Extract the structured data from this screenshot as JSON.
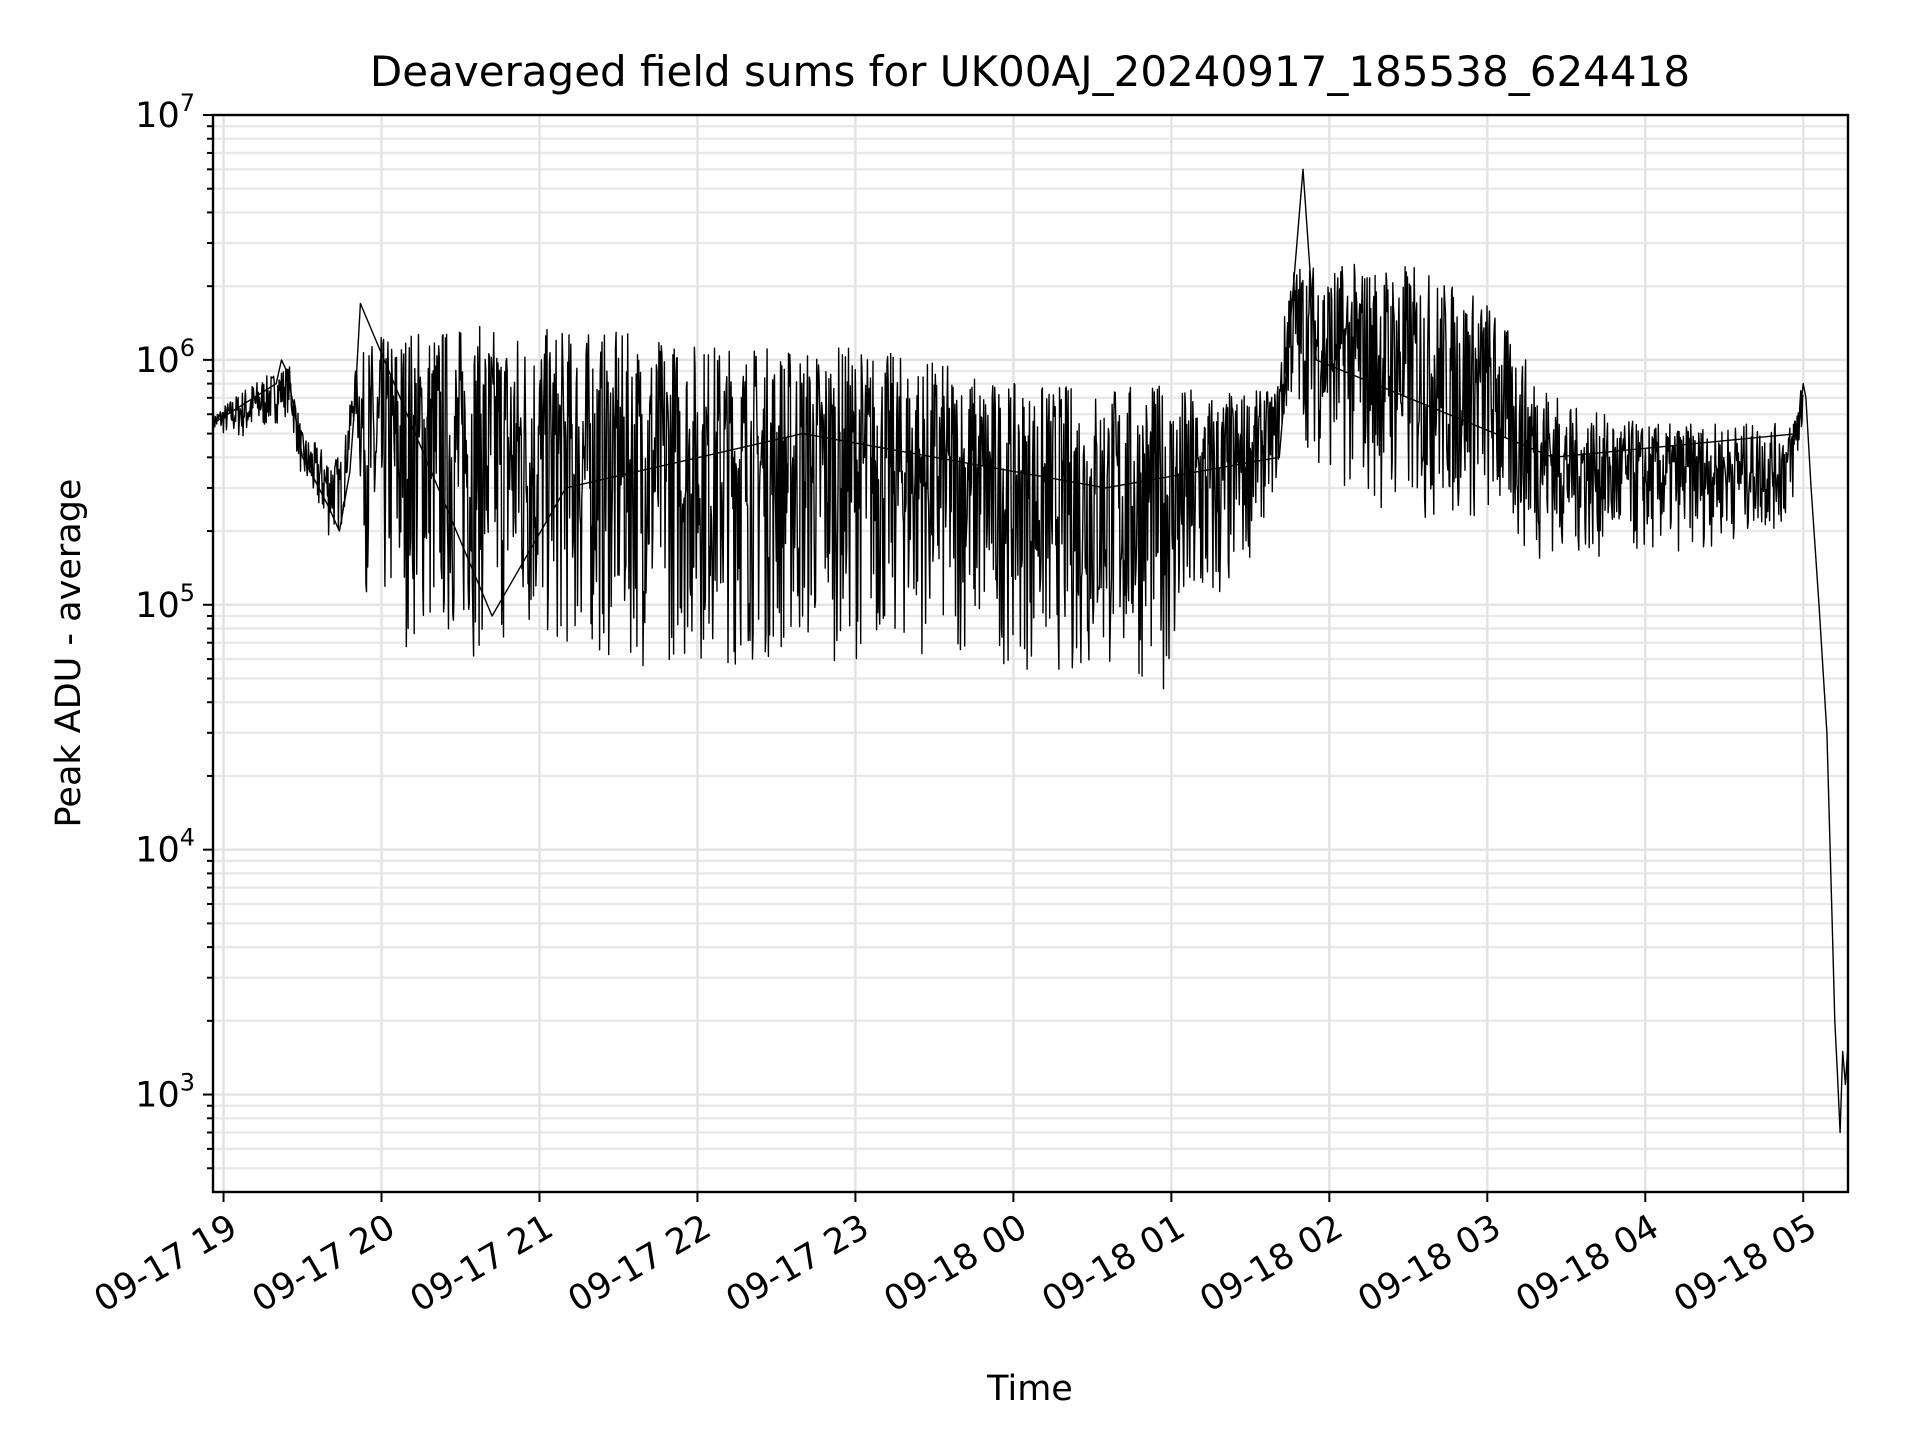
{
  "chart_data": {
    "type": "line",
    "title": "Deaveraged field sums for UK00AJ_20240917_185538_624418",
    "xlabel": "Time",
    "ylabel": "Peak ADU - average",
    "yscale": "log",
    "ylim": [
      400,
      10000000
    ],
    "xlim": [
      "2024-09-17 18:56",
      "2024-09-18 05:17"
    ],
    "grid": true,
    "grid_color": "#e3e3e3",
    "line_color": "#000000",
    "x_ticks": [
      {
        "value": "2024-09-17 19:00",
        "label": "09-17 19"
      },
      {
        "value": "2024-09-17 20:00",
        "label": "09-17 20"
      },
      {
        "value": "2024-09-17 21:00",
        "label": "09-17 21"
      },
      {
        "value": "2024-09-17 22:00",
        "label": "09-17 22"
      },
      {
        "value": "2024-09-17 23:00",
        "label": "09-17 23"
      },
      {
        "value": "2024-09-18 00:00",
        "label": "09-18 00"
      },
      {
        "value": "2024-09-18 01:00",
        "label": "09-18 01"
      },
      {
        "value": "2024-09-18 02:00",
        "label": "09-18 02"
      },
      {
        "value": "2024-09-18 03:00",
        "label": "09-18 03"
      },
      {
        "value": "2024-09-18 04:00",
        "label": "09-18 04"
      },
      {
        "value": "2024-09-18 05:00",
        "label": "09-18 05"
      }
    ],
    "y_ticks": [
      {
        "value": 1000,
        "base": "10",
        "exp": "3"
      },
      {
        "value": 10000,
        "base": "10",
        "exp": "4"
      },
      {
        "value": 100000,
        "base": "10",
        "exp": "5"
      },
      {
        "value": 1000000,
        "base": "10",
        "exp": "6"
      },
      {
        "value": 10000000,
        "base": "10",
        "exp": "7"
      }
    ],
    "envelope": [
      {
        "x": "2024-09-17 18:56",
        "lo": 500000,
        "hi": 600000
      },
      {
        "x": "2024-09-17 19:10",
        "lo": 450000,
        "hi": 800000
      },
      {
        "x": "2024-09-17 19:25",
        "lo": 600000,
        "hi": 950000
      },
      {
        "x": "2024-09-17 19:30",
        "lo": 300000,
        "hi": 500000
      },
      {
        "x": "2024-09-17 19:40",
        "lo": 180000,
        "hi": 420000
      },
      {
        "x": "2024-09-17 19:45",
        "lo": 200000,
        "hi": 400000
      },
      {
        "x": "2024-09-17 19:50",
        "lo": 600000,
        "hi": 900000
      },
      {
        "x": "2024-09-17 19:55",
        "lo": 80000,
        "hi": 1200000
      },
      {
        "x": "2024-09-17 20:10",
        "lo": 65000,
        "hi": 1400000
      },
      {
        "x": "2024-09-17 20:30",
        "lo": 60000,
        "hi": 1400000
      },
      {
        "x": "2024-09-17 21:00",
        "lo": 58000,
        "hi": 1350000
      },
      {
        "x": "2024-09-17 21:30",
        "lo": 55000,
        "hi": 1300000
      },
      {
        "x": "2024-09-17 22:00",
        "lo": 55000,
        "hi": 1200000
      },
      {
        "x": "2024-09-17 22:30",
        "lo": 55000,
        "hi": 1150000
      },
      {
        "x": "2024-09-17 23:00",
        "lo": 60000,
        "hi": 1150000
      },
      {
        "x": "2024-09-17 23:30",
        "lo": 60000,
        "hi": 1000000
      },
      {
        "x": "2024-09-18 00:00",
        "lo": 55000,
        "hi": 800000
      },
      {
        "x": "2024-09-18 00:30",
        "lo": 45000,
        "hi": 800000
      },
      {
        "x": "2024-09-18 01:00",
        "lo": 45000,
        "hi": 800000
      },
      {
        "x": "2024-09-18 01:20",
        "lo": 80000,
        "hi": 750000
      },
      {
        "x": "2024-09-18 01:40",
        "lo": 300000,
        "hi": 750000
      },
      {
        "x": "2024-09-18 01:45",
        "lo": 600000,
        "hi": 2500000
      },
      {
        "x": "2024-09-18 02:00",
        "lo": 300000,
        "hi": 2500000
      },
      {
        "x": "2024-09-18 02:30",
        "lo": 200000,
        "hi": 2500000
      },
      {
        "x": "2024-09-18 03:00",
        "lo": 200000,
        "hi": 1800000
      },
      {
        "x": "2024-09-18 03:15",
        "lo": 150000,
        "hi": 1000000
      },
      {
        "x": "2024-09-18 03:30",
        "lo": 150000,
        "hi": 650000
      },
      {
        "x": "2024-09-18 04:00",
        "lo": 150000,
        "hi": 550000
      },
      {
        "x": "2024-09-18 04:55",
        "lo": 200000,
        "hi": 550000
      },
      {
        "x": "2024-09-18 05:00",
        "lo": 500000,
        "hi": 900000
      }
    ],
    "series": [
      {
        "x": [
          "2024-09-17 18:56",
          "2024-09-17 19:20",
          "2024-09-17 19:22",
          "2024-09-17 19:24",
          "2024-09-17 19:26",
          "2024-09-17 19:30",
          "2024-09-17 19:33",
          "2024-09-17 19:40",
          "2024-09-17 19:44",
          "2024-09-17 19:48",
          "2024-09-17 19:50",
          "2024-09-17 19:52",
          "2024-09-17 20:42",
          "2024-09-17 21:10",
          "2024-09-17 22:40",
          "2024-09-18 00:35",
          "2024-09-18 01:41",
          "2024-09-18 01:50",
          "2024-09-18 01:55",
          "2024-09-18 03:25",
          "2024-09-18 04:58",
          "2024-09-18 05:00",
          "2024-09-18 05:01",
          "2024-09-18 05:03",
          "2024-09-18 05:06",
          "2024-09-18 05:09",
          "2024-09-18 05:11",
          "2024-09-18 05:12",
          "2024-09-18 05:13",
          "2024-09-18 05:14",
          "2024-09-18 05:15",
          "2024-09-18 05:16",
          "2024-09-18 05:17"
        ],
        "y": [
          550000,
          800000,
          1000000,
          900000,
          700000,
          400000,
          350000,
          250000,
          200000,
          350000,
          700000,
          1700000,
          90000,
          300000,
          500000,
          300000,
          400000,
          6000000,
          1000000,
          400000,
          500000,
          800000,
          700000,
          300000,
          100000,
          30000,
          5000,
          2000,
          1200,
          700,
          1500,
          1100,
          1600
        ]
      }
    ]
  }
}
